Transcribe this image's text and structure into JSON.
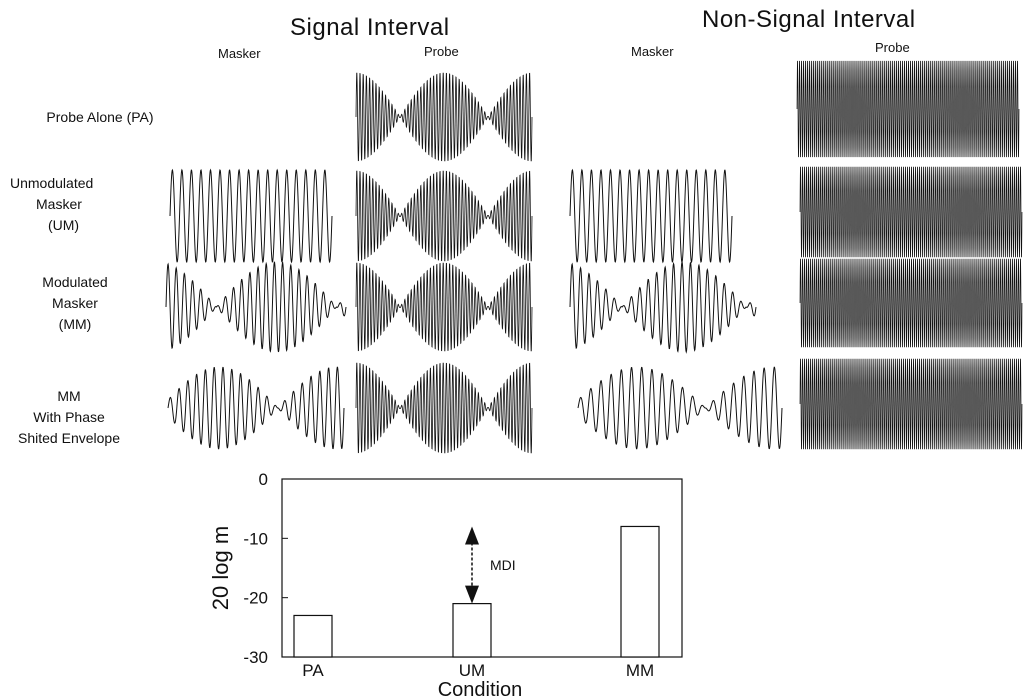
{
  "section_titles": {
    "signal": "Signal Interval",
    "non_signal": "Non-Signal Interval"
  },
  "column_headers": {
    "signal_masker": "Masker",
    "signal_probe": "Probe",
    "nonsignal_masker": "Masker",
    "nonsignal_probe": "Probe"
  },
  "rows": [
    {
      "label_lines": [
        "Probe Alone (PA)"
      ]
    },
    {
      "label_lines": [
        "Unmodulated",
        "Masker",
        "(UM)"
      ]
    },
    {
      "label_lines": [
        "Modulated",
        "Masker",
        "(MM)"
      ]
    },
    {
      "label_lines": [
        "MM",
        "With Phase",
        "Shited Envelope"
      ]
    }
  ],
  "chart_data": {
    "type": "bar",
    "categories": [
      "PA",
      "UM",
      "MM"
    ],
    "values": [
      -23,
      -21,
      -8
    ],
    "xlabel": "Condition",
    "ylabel": "20 log m",
    "ylim": [
      -30,
      0
    ],
    "yticks": [
      0,
      -10,
      -20,
      -30
    ],
    "annotation": "MDI",
    "annotation_range": [
      -21,
      -8
    ],
    "grid": false,
    "legend": "none"
  }
}
